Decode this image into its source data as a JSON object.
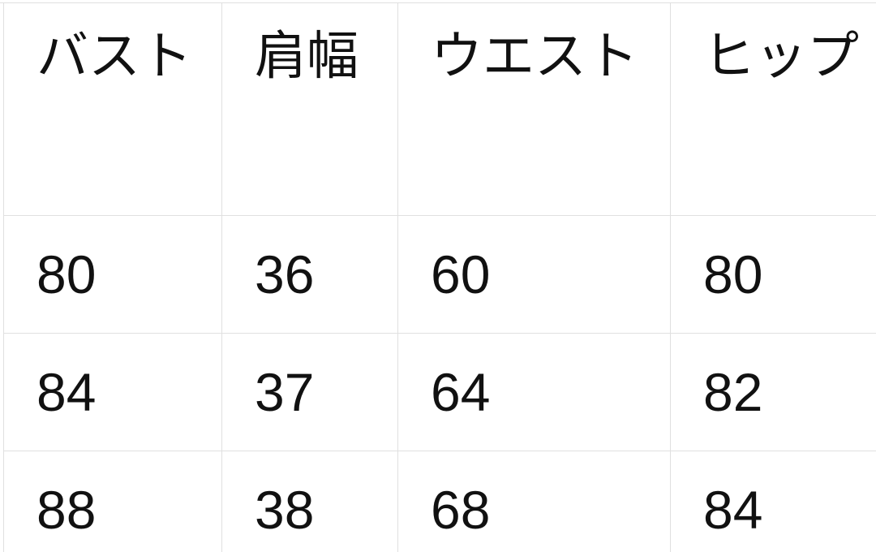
{
  "chart_data": {
    "type": "table",
    "title": "",
    "columns": [
      "バスト",
      "肩幅",
      "ウエスト",
      "ヒップ"
    ],
    "rows": [
      [
        "80",
        "36",
        "60",
        "80"
      ],
      [
        "84",
        "37",
        "64",
        "82"
      ],
      [
        "88",
        "38",
        "68",
        "84"
      ]
    ]
  },
  "colors": {
    "grid_border": "#e0e0e0",
    "bottom_edge": "#cfcfcf",
    "text": "#111111",
    "background": "#ffffff"
  }
}
